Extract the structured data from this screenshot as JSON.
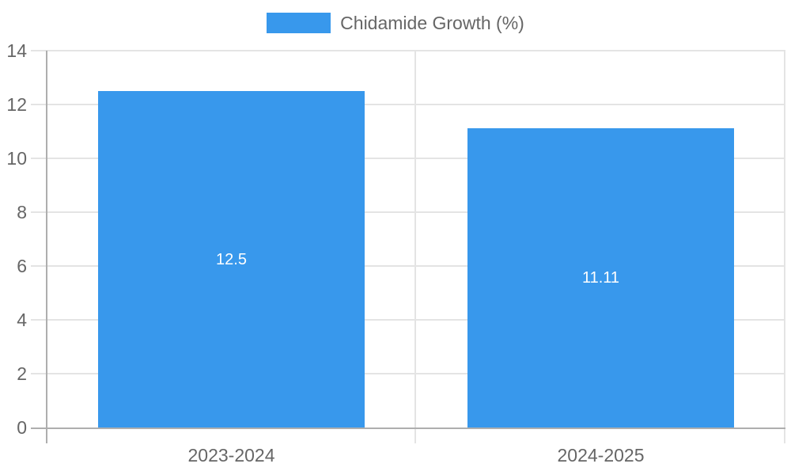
{
  "colors": {
    "bar": "#3898ec",
    "grid": "#e4e4e4",
    "axis_border": "#aeaeae",
    "tick_label": "#666666",
    "value_label": "#ffffff",
    "background": "#ffffff"
  },
  "chart_data": {
    "type": "bar",
    "title": "",
    "legend": "Chidamide Growth (%)",
    "legend_position": "top",
    "categories": [
      "2023-2024",
      "2024-2025"
    ],
    "values": [
      12.5,
      11.11
    ],
    "value_labels": [
      "12.5",
      "11.11"
    ],
    "xlabel": "",
    "ylabel": "",
    "ylim": [
      0,
      14
    ],
    "ytick_step": 2,
    "ytick_labels": [
      "0",
      "2",
      "4",
      "6",
      "8",
      "10",
      "12",
      "14"
    ],
    "grid": true,
    "bar_width_fraction": 0.72
  }
}
